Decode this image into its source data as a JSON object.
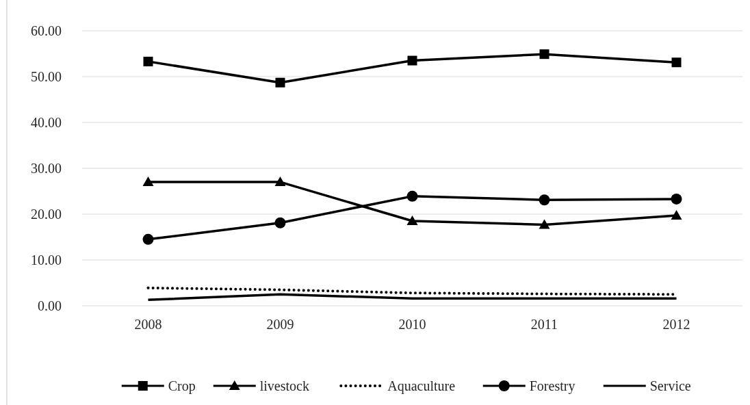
{
  "chart_data": {
    "type": "line",
    "categories": [
      "2008",
      "2009",
      "2010",
      "2011",
      "2012"
    ],
    "series": [
      {
        "name": "Crop",
        "color": "#000000",
        "marker": "square",
        "line_style": "solid",
        "values": [
          53.3,
          48.7,
          53.5,
          54.9,
          53.1
        ]
      },
      {
        "name": "livestock",
        "color": "#000000",
        "marker": "triangle",
        "line_style": "solid",
        "values": [
          27.0,
          27.0,
          18.5,
          17.7,
          19.7
        ]
      },
      {
        "name": "Aquaculture",
        "color": "#000000",
        "marker": "none",
        "line_style": "dotted",
        "values": [
          3.9,
          3.5,
          2.8,
          2.6,
          2.5
        ]
      },
      {
        "name": "Forestry",
        "color": "#000000",
        "marker": "circle",
        "line_style": "solid",
        "values": [
          14.5,
          18.1,
          23.9,
          23.1,
          23.3
        ]
      },
      {
        "name": "Service",
        "color": "#000000",
        "marker": "none",
        "line_style": "solid",
        "values": [
          1.3,
          2.5,
          1.6,
          1.6,
          1.6
        ]
      }
    ],
    "ylim": [
      0,
      60
    ],
    "yticks": [
      {
        "value": 0,
        "label": "0.00"
      },
      {
        "value": 10,
        "label": "10.00"
      },
      {
        "value": 20,
        "label": "20.00"
      },
      {
        "value": 30,
        "label": "30.00"
      },
      {
        "value": 40,
        "label": "40.00"
      },
      {
        "value": 50,
        "label": "50.00"
      },
      {
        "value": 60,
        "label": "60.00"
      }
    ],
    "grid": "y",
    "legend": "bottom"
  }
}
